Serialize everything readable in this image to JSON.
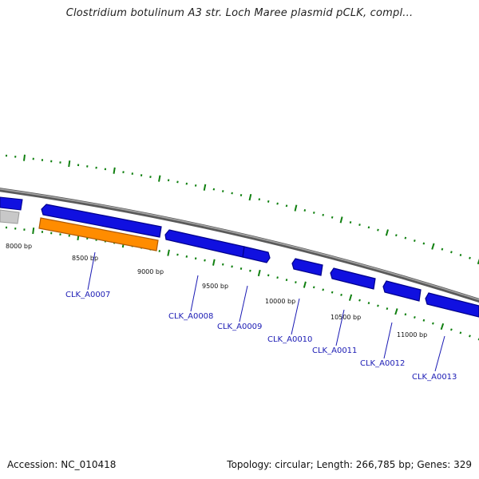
{
  "title": "Clostridium botulinum A3 str. Loch Maree plasmid pCLK, compl...",
  "accession": "Accession: NC_010418",
  "summary": "Topology: circular; Length: 266,785 bp; Genes: 329",
  "colors": {
    "backbone": "#808080",
    "cds": "#1010e0",
    "cds_dark": "#00008a",
    "selected": "#ff8c00",
    "selected_dark": "#b05a00",
    "rna": "#c8c8c8",
    "tick": "#108010",
    "label": "#1a1ab4"
  },
  "bp_labels": [
    "8000 bp",
    "8500 bp",
    "9000 bp",
    "9500 bp",
    "10000 bp",
    "10500 bp",
    "11000 bp"
  ],
  "genes": [
    "CLK_A0007",
    "CLK_A0008",
    "CLK_A0009",
    "CLK_A0010",
    "CLK_A0011",
    "CLK_A0012",
    "CLK_A0013"
  ]
}
